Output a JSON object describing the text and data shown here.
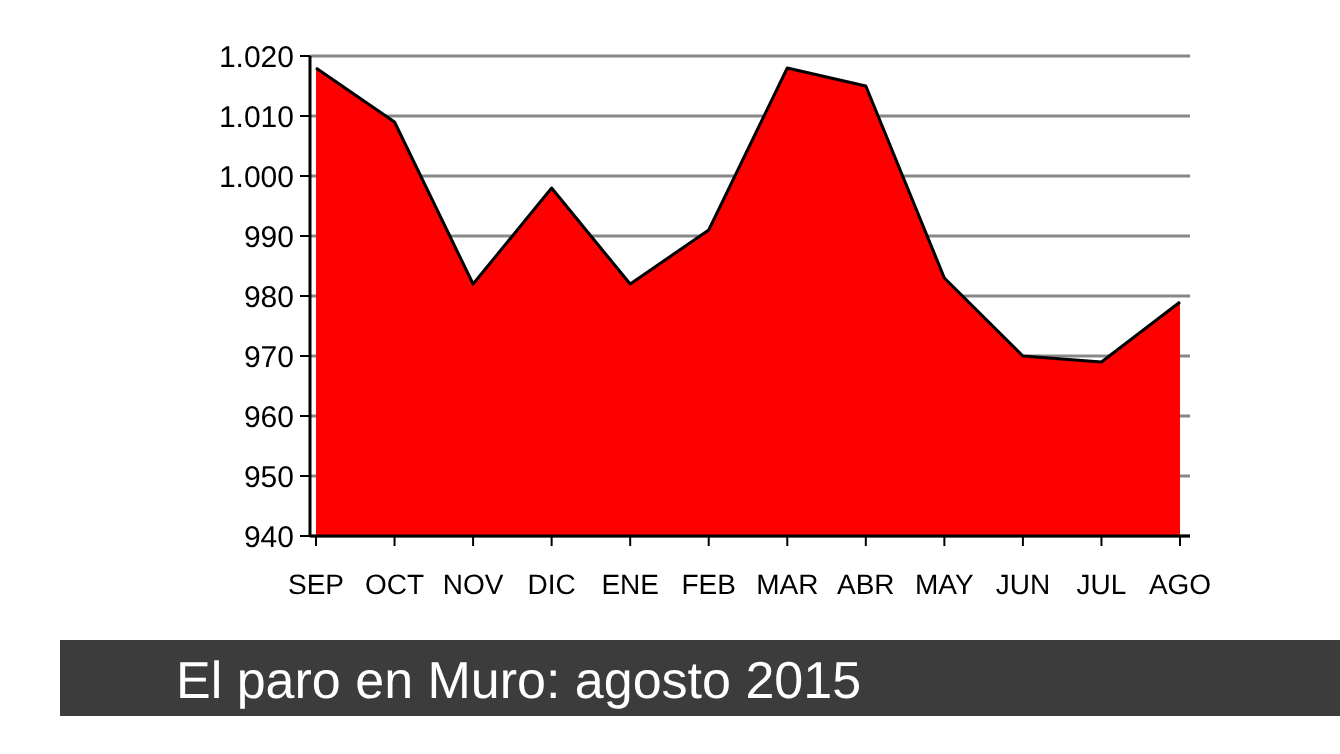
{
  "chart_data": {
    "type": "area",
    "title": "El paro en Muro: agosto 2015",
    "categories": [
      "SEP",
      "OCT",
      "NOV",
      "DIC",
      "ENE",
      "FEB",
      "MAR",
      "ABR",
      "MAY",
      "JUN",
      "JUL",
      "AGO"
    ],
    "series": [
      {
        "color": "#ff0000",
        "values": [
          1018,
          1009,
          982,
          998,
          982,
          991,
          1018,
          1015,
          983,
          970,
          969,
          979
        ]
      }
    ],
    "ylim": [
      940,
      1020
    ],
    "yticks": [
      940,
      950,
      960,
      970,
      980,
      990,
      {
        "value": 1000,
        "label": "1.000"
      },
      {
        "value": 1010,
        "label": "1.010"
      },
      {
        "value": 1020,
        "label": "1.020"
      }
    ],
    "grid": "y"
  }
}
